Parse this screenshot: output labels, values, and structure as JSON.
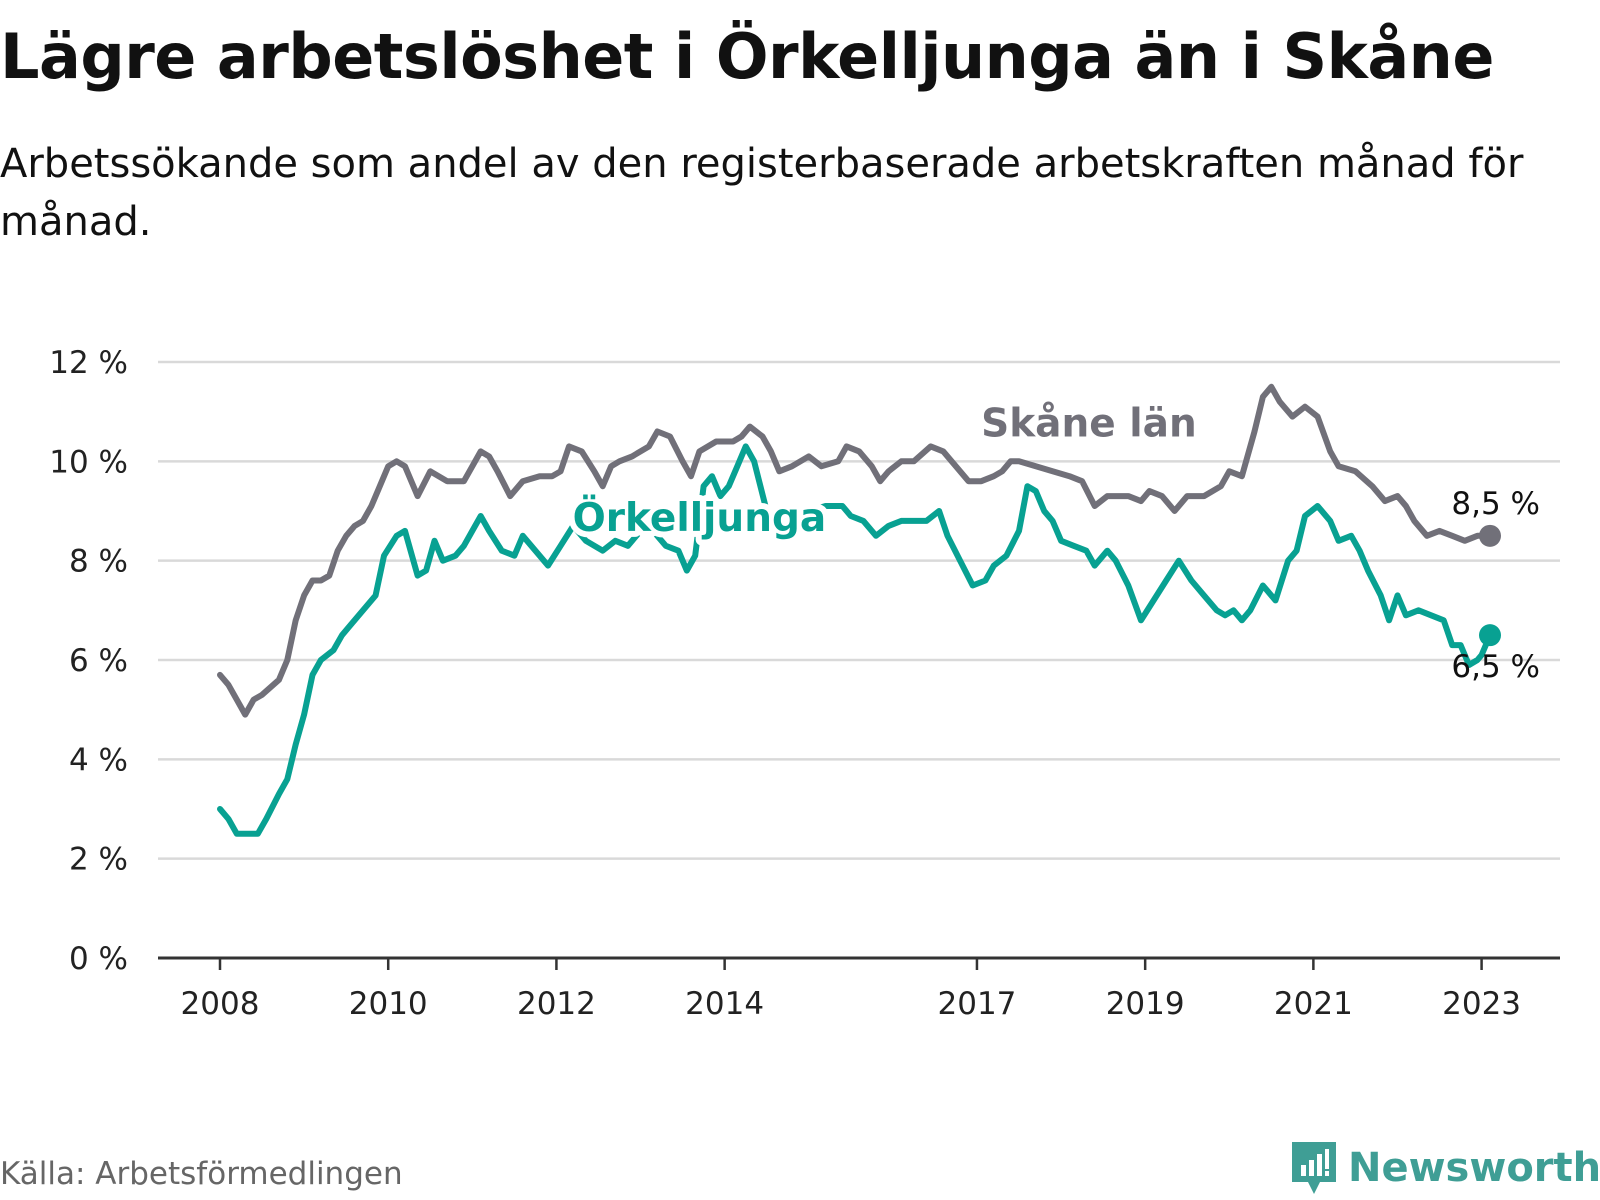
{
  "title": "Lägre arbetslöshet i Örkelljunga än i Skåne",
  "subtitle": "Arbetssökande som andel av den registerbaserade arbetskraften månad för månad.",
  "source": "Källa: Arbetsförmedlingen",
  "brand": "Newsworthy",
  "colors": {
    "skane": "#717079",
    "orkelljunga": "#08a192",
    "grid": "#d9d9d9",
    "axis": "#333333",
    "brand": "#3f9e95"
  },
  "chart_data": {
    "type": "line",
    "title": "Lägre arbetslöshet i Örkelljunga än i Skåne",
    "xlabel": "",
    "ylabel": "",
    "xlim": [
      2008.0,
      2024.3
    ],
    "ylim": [
      0,
      12
    ],
    "yticks": [
      0,
      2,
      4,
      6,
      8,
      10,
      12
    ],
    "ytick_labels": [
      "0 %",
      "2 %",
      "4 %",
      "6 %",
      "8 %",
      "10 %",
      "12 %"
    ],
    "xticks": [
      2008,
      2010,
      2012,
      2014,
      2017,
      2019,
      2021,
      2023
    ],
    "xtick_labels": [
      "2008",
      "2010",
      "2012",
      "2014",
      "2017",
      "2019",
      "2021",
      "2023"
    ],
    "grid": true,
    "series": [
      {
        "name": "Skåne län",
        "key": "skane",
        "end_label": "8,5 %",
        "points": [
          [
            2008.0,
            5.7
          ],
          [
            2008.1,
            5.5
          ],
          [
            2008.2,
            5.2
          ],
          [
            2008.3,
            4.9
          ],
          [
            2008.4,
            5.2
          ],
          [
            2008.5,
            5.3
          ],
          [
            2008.7,
            5.6
          ],
          [
            2008.8,
            6.0
          ],
          [
            2008.9,
            6.8
          ],
          [
            2009.0,
            7.3
          ],
          [
            2009.1,
            7.6
          ],
          [
            2009.2,
            7.6
          ],
          [
            2009.3,
            7.7
          ],
          [
            2009.4,
            8.2
          ],
          [
            2009.5,
            8.5
          ],
          [
            2009.6,
            8.7
          ],
          [
            2009.7,
            8.8
          ],
          [
            2009.8,
            9.1
          ],
          [
            2009.9,
            9.5
          ],
          [
            2010.0,
            9.9
          ],
          [
            2010.1,
            10.0
          ],
          [
            2010.2,
            9.9
          ],
          [
            2010.35,
            9.3
          ],
          [
            2010.5,
            9.8
          ],
          [
            2010.7,
            9.6
          ],
          [
            2010.9,
            9.6
          ],
          [
            2011.0,
            9.9
          ],
          [
            2011.1,
            10.2
          ],
          [
            2011.2,
            10.1
          ],
          [
            2011.3,
            9.8
          ],
          [
            2011.45,
            9.3
          ],
          [
            2011.6,
            9.6
          ],
          [
            2011.8,
            9.7
          ],
          [
            2011.95,
            9.7
          ],
          [
            2012.05,
            9.8
          ],
          [
            2012.15,
            10.3
          ],
          [
            2012.3,
            10.2
          ],
          [
            2012.45,
            9.8
          ],
          [
            2012.55,
            9.5
          ],
          [
            2012.65,
            9.9
          ],
          [
            2012.75,
            10.0
          ],
          [
            2012.9,
            10.1
          ],
          [
            2013.1,
            10.3
          ],
          [
            2013.2,
            10.6
          ],
          [
            2013.35,
            10.5
          ],
          [
            2013.5,
            10.0
          ],
          [
            2013.6,
            9.7
          ],
          [
            2013.7,
            10.2
          ],
          [
            2013.9,
            10.4
          ],
          [
            2014.1,
            10.4
          ],
          [
            2014.2,
            10.5
          ],
          [
            2014.3,
            10.7
          ],
          [
            2014.45,
            10.5
          ],
          [
            2014.55,
            10.2
          ],
          [
            2014.65,
            9.8
          ],
          [
            2014.8,
            9.9
          ],
          [
            2015.0,
            10.1
          ],
          [
            2015.15,
            9.9
          ],
          [
            2015.35,
            10.0
          ],
          [
            2015.45,
            10.3
          ],
          [
            2015.6,
            10.2
          ],
          [
            2015.75,
            9.9
          ],
          [
            2015.85,
            9.6
          ],
          [
            2015.95,
            9.8
          ],
          [
            2016.1,
            10.0
          ],
          [
            2016.25,
            10.0
          ],
          [
            2016.45,
            10.3
          ],
          [
            2016.6,
            10.2
          ],
          [
            2016.75,
            9.9
          ],
          [
            2016.9,
            9.6
          ],
          [
            2017.05,
            9.6
          ],
          [
            2017.2,
            9.7
          ],
          [
            2017.3,
            9.8
          ],
          [
            2017.4,
            10.0
          ],
          [
            2017.5,
            10.0
          ],
          [
            2017.7,
            9.9
          ],
          [
            2017.9,
            9.8
          ],
          [
            2018.1,
            9.7
          ],
          [
            2018.25,
            9.6
          ],
          [
            2018.4,
            9.1
          ],
          [
            2018.55,
            9.3
          ],
          [
            2018.8,
            9.3
          ],
          [
            2018.95,
            9.2
          ],
          [
            2019.05,
            9.4
          ],
          [
            2019.2,
            9.3
          ],
          [
            2019.35,
            9.0
          ],
          [
            2019.5,
            9.3
          ],
          [
            2019.7,
            9.3
          ],
          [
            2019.9,
            9.5
          ],
          [
            2020.0,
            9.8
          ],
          [
            2020.15,
            9.7
          ],
          [
            2020.3,
            10.6
          ],
          [
            2020.4,
            11.3
          ],
          [
            2020.5,
            11.5
          ],
          [
            2020.6,
            11.2
          ],
          [
            2020.75,
            10.9
          ],
          [
            2020.9,
            11.1
          ],
          [
            2021.05,
            10.9
          ],
          [
            2021.2,
            10.2
          ],
          [
            2021.3,
            9.9
          ],
          [
            2021.5,
            9.8
          ],
          [
            2021.7,
            9.5
          ],
          [
            2021.85,
            9.2
          ],
          [
            2022.0,
            9.3
          ],
          [
            2022.1,
            9.1
          ],
          [
            2022.2,
            8.8
          ],
          [
            2022.35,
            8.5
          ],
          [
            2022.5,
            8.6
          ],
          [
            2022.65,
            8.5
          ],
          [
            2022.8,
            8.4
          ],
          [
            2022.95,
            8.5
          ],
          [
            2023.1,
            8.5
          ]
        ]
      },
      {
        "name": "Örkelljunga",
        "key": "orkelljunga",
        "end_label": "6,5 %",
        "points": [
          [
            2008.0,
            3.0
          ],
          [
            2008.1,
            2.8
          ],
          [
            2008.2,
            2.5
          ],
          [
            2008.3,
            2.5
          ],
          [
            2008.45,
            2.5
          ],
          [
            2008.55,
            2.8
          ],
          [
            2008.7,
            3.3
          ],
          [
            2008.8,
            3.6
          ],
          [
            2008.9,
            4.3
          ],
          [
            2009.0,
            4.9
          ],
          [
            2009.1,
            5.7
          ],
          [
            2009.2,
            6.0
          ],
          [
            2009.35,
            6.2
          ],
          [
            2009.45,
            6.5
          ],
          [
            2009.55,
            6.7
          ],
          [
            2009.7,
            7.0
          ],
          [
            2009.85,
            7.3
          ],
          [
            2009.95,
            8.1
          ],
          [
            2010.1,
            8.5
          ],
          [
            2010.2,
            8.6
          ],
          [
            2010.35,
            7.7
          ],
          [
            2010.45,
            7.8
          ],
          [
            2010.55,
            8.4
          ],
          [
            2010.65,
            8.0
          ],
          [
            2010.8,
            8.1
          ],
          [
            2010.9,
            8.3
          ],
          [
            2011.0,
            8.6
          ],
          [
            2011.1,
            8.9
          ],
          [
            2011.2,
            8.6
          ],
          [
            2011.35,
            8.2
          ],
          [
            2011.5,
            8.1
          ],
          [
            2011.6,
            8.5
          ],
          [
            2011.75,
            8.2
          ],
          [
            2011.9,
            7.9
          ],
          [
            2012.05,
            8.3
          ],
          [
            2012.2,
            8.7
          ],
          [
            2012.35,
            8.4
          ],
          [
            2012.55,
            8.2
          ],
          [
            2012.7,
            8.4
          ],
          [
            2012.85,
            8.3
          ],
          [
            2013.0,
            8.6
          ],
          [
            2013.15,
            8.6
          ],
          [
            2013.3,
            8.3
          ],
          [
            2013.45,
            8.2
          ],
          [
            2013.55,
            7.8
          ],
          [
            2013.65,
            8.1
          ],
          [
            2013.75,
            9.5
          ],
          [
            2013.85,
            9.7
          ],
          [
            2013.95,
            9.3
          ],
          [
            2014.05,
            9.5
          ],
          [
            2014.15,
            9.9
          ],
          [
            2014.25,
            10.3
          ],
          [
            2014.35,
            10.0
          ],
          [
            2014.5,
            9.0
          ],
          [
            2014.6,
            8.5
          ],
          [
            2014.7,
            8.5
          ],
          [
            2014.85,
            8.9
          ],
          [
            2015.0,
            9.0
          ],
          [
            2015.2,
            9.1
          ],
          [
            2015.4,
            9.1
          ],
          [
            2015.5,
            8.9
          ],
          [
            2015.65,
            8.8
          ],
          [
            2015.8,
            8.5
          ],
          [
            2015.95,
            8.7
          ],
          [
            2016.1,
            8.8
          ],
          [
            2016.25,
            8.8
          ],
          [
            2016.4,
            8.8
          ],
          [
            2016.55,
            9.0
          ],
          [
            2016.65,
            8.5
          ],
          [
            2016.8,
            8.0
          ],
          [
            2016.95,
            7.5
          ],
          [
            2017.1,
            7.6
          ],
          [
            2017.2,
            7.9
          ],
          [
            2017.35,
            8.1
          ],
          [
            2017.5,
            8.6
          ],
          [
            2017.6,
            9.5
          ],
          [
            2017.7,
            9.4
          ],
          [
            2017.8,
            9.0
          ],
          [
            2017.9,
            8.8
          ],
          [
            2018.0,
            8.4
          ],
          [
            2018.15,
            8.3
          ],
          [
            2018.3,
            8.2
          ],
          [
            2018.4,
            7.9
          ],
          [
            2018.55,
            8.2
          ],
          [
            2018.65,
            8.0
          ],
          [
            2018.8,
            7.5
          ],
          [
            2018.95,
            6.8
          ],
          [
            2019.1,
            7.2
          ],
          [
            2019.25,
            7.6
          ],
          [
            2019.4,
            8.0
          ],
          [
            2019.55,
            7.6
          ],
          [
            2019.7,
            7.3
          ],
          [
            2019.85,
            7.0
          ],
          [
            2019.95,
            6.9
          ],
          [
            2020.05,
            7.0
          ],
          [
            2020.15,
            6.8
          ],
          [
            2020.25,
            7.0
          ],
          [
            2020.4,
            7.5
          ],
          [
            2020.55,
            7.2
          ],
          [
            2020.7,
            8.0
          ],
          [
            2020.8,
            8.2
          ],
          [
            2020.9,
            8.9
          ],
          [
            2021.05,
            9.1
          ],
          [
            2021.2,
            8.8
          ],
          [
            2021.3,
            8.4
          ],
          [
            2021.45,
            8.5
          ],
          [
            2021.55,
            8.2
          ],
          [
            2021.65,
            7.8
          ],
          [
            2021.8,
            7.3
          ],
          [
            2021.9,
            6.8
          ],
          [
            2022.0,
            7.3
          ],
          [
            2022.1,
            6.9
          ],
          [
            2022.25,
            7.0
          ],
          [
            2022.4,
            6.9
          ],
          [
            2022.55,
            6.8
          ],
          [
            2022.65,
            6.3
          ],
          [
            2022.75,
            6.3
          ],
          [
            2022.85,
            5.9
          ],
          [
            2022.95,
            6.0
          ],
          [
            2023.0,
            6.1
          ],
          [
            2023.1,
            6.5
          ]
        ]
      }
    ],
    "annotations": [
      {
        "text": "Skåne län",
        "series": "skane",
        "x": 2017.05,
        "y": 10.5
      },
      {
        "text": "Örkelljunga",
        "series": "orkelljunga",
        "x": 2013.7,
        "y": 8.6
      }
    ]
  }
}
